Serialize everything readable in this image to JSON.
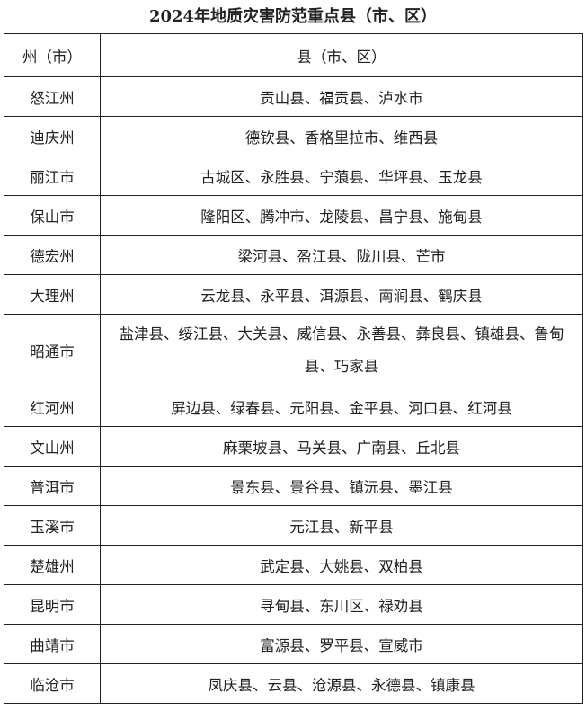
{
  "title": "2024年地质灾害防范重点县（市、区）",
  "table": {
    "headers": [
      "州（市）",
      "县（市、区）"
    ],
    "rows": [
      {
        "prefecture": "怒江州",
        "counties": "贡山县、福贡县、泸水市"
      },
      {
        "prefecture": "迪庆州",
        "counties": "德钦县、香格里拉市、维西县"
      },
      {
        "prefecture": "丽江市",
        "counties": "古城区、永胜县、宁蒗县、华坪县、玉龙县"
      },
      {
        "prefecture": "保山市",
        "counties": "隆阳区、腾冲市、龙陵县、昌宁县、施甸县"
      },
      {
        "prefecture": "德宏州",
        "counties": "梁河县、盈江县、陇川县、芒市"
      },
      {
        "prefecture": "大理州",
        "counties": "云龙县、永平县、洱源县、南涧县、鹤庆县"
      },
      {
        "prefecture": "昭通市",
        "counties": "盐津县、绥江县、大关县、威信县、永善县、彝良县、镇雄县、鲁甸县、巧家县"
      },
      {
        "prefecture": "红河州",
        "counties": "屏边县、绿春县、元阳县、金平县、河口县、红河县"
      },
      {
        "prefecture": "文山州",
        "counties": "麻栗坡县、马关县、广南县、丘北县"
      },
      {
        "prefecture": "普洱市",
        "counties": "景东县、景谷县、镇沅县、墨江县"
      },
      {
        "prefecture": "玉溪市",
        "counties": "元江县、新平县"
      },
      {
        "prefecture": "楚雄州",
        "counties": "武定县、大姚县、双柏县"
      },
      {
        "prefecture": "昆明市",
        "counties": "寻甸县、东川区、禄劝县"
      },
      {
        "prefecture": "曲靖市",
        "counties": "富源县、罗平县、宣威市"
      },
      {
        "prefecture": "临沧市",
        "counties": "凤庆县、云县、沧源县、永德县、镇康县"
      }
    ]
  }
}
